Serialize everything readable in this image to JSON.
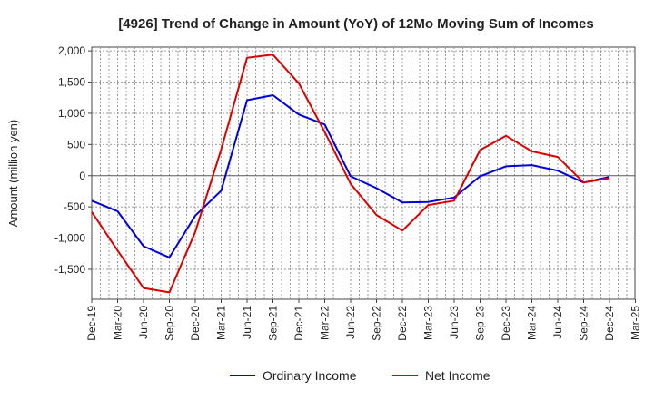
{
  "chart_data": {
    "type": "line",
    "title": "[4926]  Trend of Change in Amount (YoY) of 12Mo Moving Sum of Incomes",
    "xlabel": "",
    "ylabel": "Amount (million yen)",
    "ylim": [
      -1980,
      2060
    ],
    "yticks": [
      2000,
      1500,
      1000,
      500,
      0,
      -500,
      -1000,
      -1500
    ],
    "ytick_labels": [
      "2,000",
      "1,500",
      "1,000",
      "500",
      "0",
      "-500",
      "-1,000",
      "-1,500"
    ],
    "categories": [
      "Dec-19",
      "Mar-20",
      "Jun-20",
      "Sep-20",
      "Dec-20",
      "Mar-21",
      "Jun-21",
      "Sep-21",
      "Dec-21",
      "Mar-22",
      "Jun-22",
      "Sep-22",
      "Dec-22",
      "Mar-23",
      "Jun-23",
      "Sep-23",
      "Dec-23",
      "Mar-24",
      "Jun-24",
      "Sep-24",
      "Dec-24",
      "Mar-25"
    ],
    "grid": true,
    "legend": "bottom",
    "series": [
      {
        "name": "Ordinary Income",
        "color": "#0000dd",
        "values": [
          -400,
          -570,
          -1130,
          -1310,
          -640,
          -240,
          1210,
          1290,
          980,
          820,
          -10,
          -200,
          -430,
          -420,
          -350,
          -10,
          150,
          170,
          80,
          -110,
          -20,
          null
        ]
      },
      {
        "name": "Net Income",
        "color": "#dd0000",
        "values": [
          -580,
          -1200,
          -1800,
          -1870,
          -900,
          420,
          1890,
          1940,
          1480,
          700,
          -130,
          -630,
          -880,
          -470,
          -400,
          410,
          640,
          390,
          300,
          -110,
          -40,
          null
        ]
      }
    ]
  }
}
